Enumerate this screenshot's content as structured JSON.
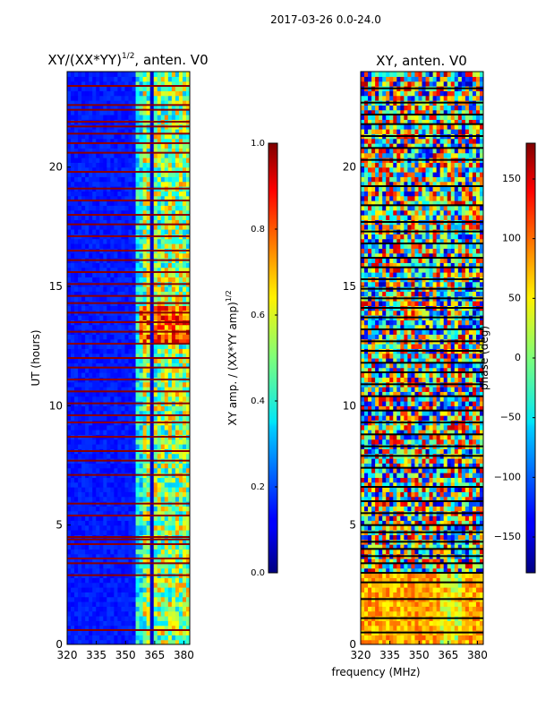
{
  "chart_data": [
    {
      "type": "heatmap",
      "title": "2017-03-26 0.0-24.0",
      "panel_title": "XY/(XX*YY)^{1/2}, anten. V0",
      "title_prefix": "XY/(XX*YY)",
      "title_exponent": "1/2",
      "title_suffix": ", anten. V0",
      "xlabel": "frequency (MHz)",
      "ylabel": "UT (hours)",
      "xlim": [
        320,
        383
      ],
      "ylim": [
        0,
        24
      ],
      "xticks": [
        320,
        335,
        350,
        365,
        380
      ],
      "yticks": [
        0,
        5,
        10,
        15,
        20
      ],
      "colorbar": {
        "label_prefix": "XY amp. / (XX*YY amp)",
        "label_exponent": "1/2",
        "range": [
          0.0,
          1.0
        ],
        "ticks": [
          "0.0",
          "0.2",
          "0.4",
          "0.6",
          "0.8",
          "1.0"
        ],
        "colormap": "jet"
      },
      "flagged_hours": [
        0.6,
        2.9,
        3.4,
        3.6,
        4.2,
        4.4,
        4.5,
        5.4,
        5.9,
        7.1,
        7.7,
        8.1,
        8.7,
        9.3,
        9.6,
        10.1,
        10.6,
        11.1,
        11.6,
        12.0,
        12.6,
        13.1,
        13.5,
        13.9,
        14.3,
        14.6,
        15.1,
        15.6,
        16.1,
        16.5,
        17.1,
        17.6,
        18.0,
        18.6,
        19.1,
        19.8,
        20.6,
        21.0,
        21.4,
        21.7,
        21.9,
        22.4,
        22.6,
        23.4
      ],
      "notes": "Normalized cross-correlation amplitude vs frequency and UT; low values (blue) below ~355 MHz, high values (yellow/red) in bands near 357-380 MHz; flagged rows appear dark red."
    },
    {
      "type": "heatmap",
      "panel_title": "XY, anten. V0",
      "xlabel": "frequency (MHz)",
      "ylabel": "",
      "xlim": [
        320,
        383
      ],
      "ylim": [
        0,
        24
      ],
      "xticks": [
        320,
        335,
        350,
        365,
        380
      ],
      "yticks": [
        0,
        5,
        10,
        15,
        20
      ],
      "colorbar": {
        "label": "phase (deg)",
        "range": [
          -180,
          180
        ],
        "ticks": [
          "−150",
          "−100",
          "−50",
          "0",
          "50",
          "100",
          "150"
        ],
        "tick_values": [
          -150,
          -100,
          -50,
          0,
          50,
          100,
          150
        ],
        "colormap": "jet"
      },
      "flagged_hours": [
        0.5,
        1.1,
        1.9,
        2.6,
        3.0,
        3.4,
        3.7,
        4.0,
        4.3,
        4.7,
        5.0,
        5.5,
        6.0,
        6.6,
        7.4,
        7.9,
        8.3,
        8.8,
        9.3,
        9.8,
        10.4,
        10.9,
        11.4,
        11.8,
        12.3,
        12.7,
        13.2,
        13.7,
        14.1,
        14.5,
        14.9,
        15.3,
        15.8,
        16.2,
        16.8,
        17.3,
        17.7,
        18.4,
        19.2,
        20.3,
        20.8,
        21.3,
        21.8,
        22.2,
        22.7,
        23.3
      ],
      "notes": "Cross-correlation phase vs frequency and UT; mostly orange/yellow (~50-120 deg) below 3 h, varied cyan/red/yellow structure above."
    }
  ]
}
